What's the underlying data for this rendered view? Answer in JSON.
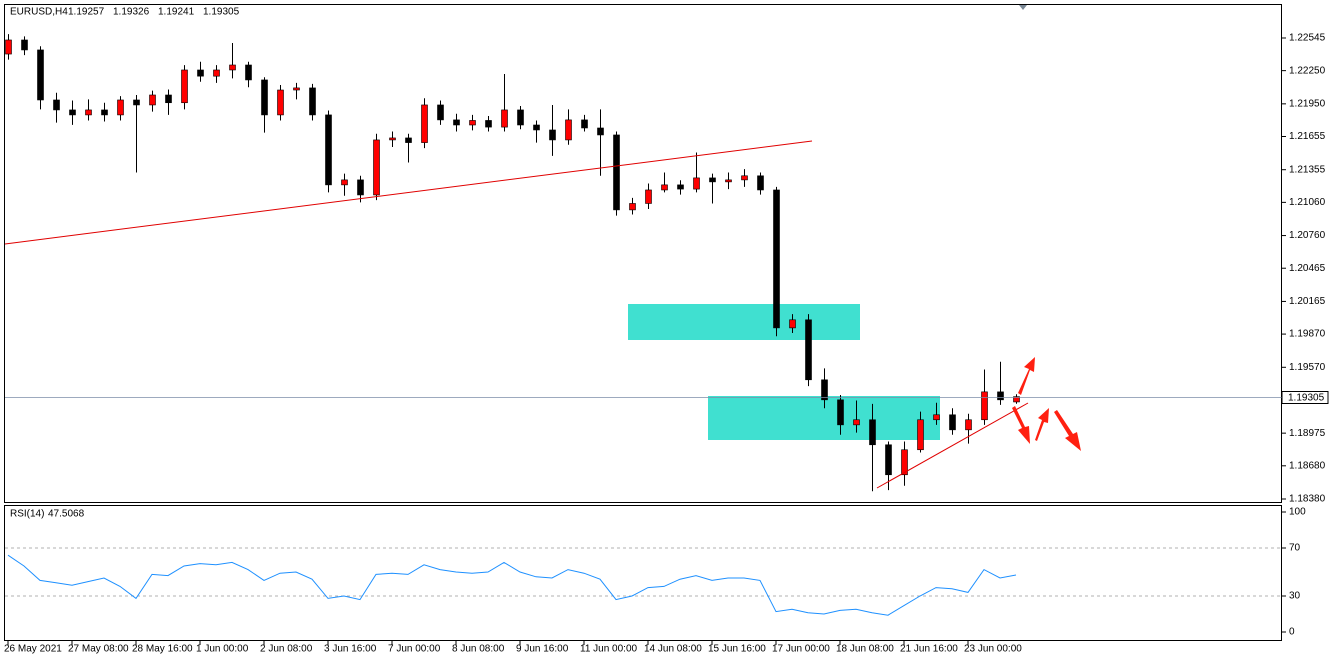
{
  "chart_data": [
    {
      "type": "candlestick",
      "symbol": "EURUSD,H4",
      "ohlc_header": [
        1.19257,
        1.19326,
        1.19241,
        1.19305
      ],
      "bid": 1.19305,
      "up_color": "#ff0000",
      "down_color": "#000000",
      "categories": [
        "26 May 2021",
        null,
        null,
        null,
        "27 May 08:00",
        null,
        null,
        null,
        "28 May 16:00",
        null,
        null,
        null,
        "1 Jun 00:00",
        null,
        null,
        null,
        "2 Jun 08:00",
        null,
        null,
        null,
        "3 Jun 16:00",
        null,
        null,
        null,
        "7 Jun 00:00",
        null,
        null,
        null,
        "8 Jun 08:00",
        null,
        null,
        null,
        "9 Jun 16:00",
        null,
        null,
        null,
        "11 Jun 00:00",
        null,
        null,
        null,
        "14 Jun 08:00",
        null,
        null,
        null,
        "15 Jun 16:00",
        null,
        null,
        null,
        "17 Jun 00:00",
        null,
        null,
        null,
        "18 Jun 08:00",
        null,
        null,
        null,
        "21 Jun 16:00",
        null,
        null,
        null,
        "23 Jun 00:00",
        null,
        null,
        null
      ],
      "open": [
        1.224,
        1.22527,
        1.22437,
        1.21985,
        1.21895,
        1.2185,
        1.21895,
        1.2185,
        1.21985,
        1.2194,
        1.2203,
        1.2196,
        1.22256,
        1.222,
        1.22256,
        1.22301,
        1.22166,
        1.2185,
        1.22075,
        1.22094,
        1.2185,
        1.21218,
        1.21263,
        1.21127,
        1.21624,
        1.21642,
        1.216,
        1.2194,
        1.21805,
        1.21759,
        1.218,
        1.2174,
        1.21895,
        1.21759,
        1.21714,
        1.21624,
        1.21805,
        1.21732,
        1.21669,
        1.20992,
        1.2105,
        1.21172,
        1.21218,
        1.2118,
        1.21281,
        1.21245,
        1.21263,
        1.213,
        1.21172,
        1.19926,
        1.19999,
        1.19457,
        1.19276,
        1.1905,
        1.19096,
        1.1887,
        1.18599,
        1.18825,
        1.19096,
        1.19141,
        1.19005,
        1.19096,
        1.19348,
        1.19257
      ],
      "high": [
        1.2258,
        1.2256,
        1.2247,
        1.2205,
        1.2198,
        1.2199,
        1.2196,
        1.2202,
        1.2203,
        1.2207,
        1.2208,
        1.223,
        1.2233,
        1.223,
        1.225,
        1.2233,
        1.2219,
        1.2212,
        1.2214,
        1.2213,
        1.2189,
        1.2132,
        1.213,
        1.2168,
        1.217,
        1.2168,
        1.22,
        1.2198,
        1.2186,
        1.2185,
        1.2184,
        1.2222,
        1.2193,
        1.218,
        1.2194,
        1.219,
        1.2185,
        1.219,
        1.217,
        1.211,
        1.2123,
        1.2133,
        1.2126,
        1.2151,
        1.2132,
        1.2133,
        1.2136,
        1.2133,
        1.212,
        1.2005,
        1.2005,
        1.1956,
        1.1932,
        1.1927,
        1.1924,
        1.189,
        1.189,
        1.1917,
        1.1925,
        1.192,
        1.1915,
        1.1955,
        1.1962,
        1.19326
      ],
      "low": [
        1.2235,
        1.2239,
        1.219,
        1.2178,
        1.2176,
        1.218,
        1.2179,
        1.218,
        1.2133,
        1.2188,
        1.2185,
        1.219,
        1.2215,
        1.2214,
        1.2218,
        1.221,
        1.2169,
        1.218,
        1.2199,
        1.218,
        1.2115,
        1.2112,
        1.2106,
        1.2108,
        1.2156,
        1.2142,
        1.2155,
        1.2176,
        1.217,
        1.2171,
        1.217,
        1.217,
        1.2172,
        1.216,
        1.2148,
        1.2158,
        1.217,
        1.213,
        1.2094,
        1.2095,
        1.21,
        1.2115,
        1.2113,
        1.2115,
        1.2105,
        1.2118,
        1.212,
        1.2113,
        1.1985,
        1.1988,
        1.194,
        1.192,
        1.1896,
        1.1898,
        1.1845,
        1.1846,
        1.185,
        1.188,
        1.1905,
        1.1896,
        1.1888,
        1.1905,
        1.1923,
        1.19241
      ],
      "close": [
        1.22527,
        1.22437,
        1.21985,
        1.21895,
        1.2185,
        1.21895,
        1.2185,
        1.21985,
        1.2194,
        1.2203,
        1.2196,
        1.22256,
        1.222,
        1.22256,
        1.22301,
        1.22166,
        1.2185,
        1.22075,
        1.22094,
        1.2185,
        1.21218,
        1.21263,
        1.21127,
        1.21624,
        1.21642,
        1.216,
        1.2194,
        1.21805,
        1.21759,
        1.218,
        1.2174,
        1.21895,
        1.21759,
        1.21714,
        1.21624,
        1.21805,
        1.21732,
        1.21669,
        1.20992,
        1.2105,
        1.21172,
        1.21218,
        1.2118,
        1.21281,
        1.21245,
        1.21263,
        1.213,
        1.21172,
        1.19926,
        1.19999,
        1.19457,
        1.19276,
        1.1905,
        1.19096,
        1.1887,
        1.18599,
        1.18825,
        1.19096,
        1.19141,
        1.19005,
        1.19096,
        1.19348,
        1.19276,
        1.19305
      ],
      "ylim": [
        1.18353,
        1.22843
      ],
      "yticks": [
        1.22545,
        {
          "value": 1.2225,
          "label": "1.22250"
        },
        {
          "value": 1.2195,
          "label": "1.21950"
        },
        1.21655,
        1.21355,
        {
          "value": 1.2106,
          "label": "1.21060"
        },
        {
          "value": 1.2076,
          "label": "1.20760"
        },
        1.20465,
        1.20165,
        {
          "value": 1.1987,
          "label": "1.19870"
        },
        {
          "value": 1.1957,
          "label": "1.19570"
        },
        1.18975,
        {
          "value": 1.1868,
          "label": "1.18680"
        },
        {
          "value": 1.1838,
          "label": "1.18380"
        }
      ]
    },
    {
      "type": "line",
      "indicator": "RSI(14)",
      "last": 47.5068,
      "color": "#1e90ff",
      "values": [
        64,
        55,
        43,
        41,
        39,
        42,
        45,
        38,
        28,
        48,
        47,
        55,
        57,
        56,
        58,
        52,
        43,
        49,
        50,
        44,
        28,
        30,
        27,
        48,
        49,
        48,
        56,
        52,
        50,
        49,
        50,
        58,
        50,
        46,
        45,
        52,
        49,
        44,
        27,
        30,
        37,
        38,
        44,
        47,
        43,
        45,
        45,
        43,
        17,
        19,
        16,
        15,
        18,
        19,
        16,
        14,
        22,
        30,
        37,
        36,
        33,
        52,
        45,
        47.5068
      ],
      "ylim": [
        0,
        100
      ],
      "yticks": [
        100,
        70,
        30,
        0
      ]
    }
  ]
}
